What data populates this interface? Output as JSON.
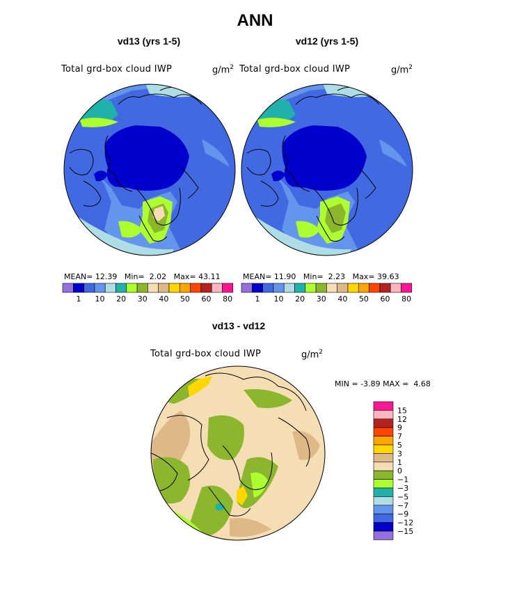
{
  "figure": {
    "title": "ANN",
    "units_base": "g/m",
    "units_exp": "2"
  },
  "chart_data": [
    {
      "type": "heatmap",
      "projection": "polar-stereographic-north",
      "title": "vd13 (yrs 1-5)",
      "field_label": "Total grd-box cloud IWP",
      "units": "g/m^2",
      "stats": {
        "mean_label": "MEAN=",
        "mean": "12.39",
        "min_label": "Min=",
        "min": "2.02",
        "max_label": "Max=",
        "max": "43.11"
      },
      "colorbar": {
        "orientation": "horizontal",
        "tick_labels": [
          "1",
          "10",
          "20",
          "30",
          "40",
          "50",
          "60",
          "80"
        ],
        "colors": [
          "#9370DB",
          "#0000CD",
          "#4169E1",
          "#6495ED",
          "#AEDDE6",
          "#20B2AA",
          "#ADFF2F",
          "#8DB62F",
          "#F5DEB3",
          "#DEB887",
          "#FFD700",
          "#FFA500",
          "#FF4500",
          "#B22222",
          "#FFB6C1",
          "#FF1493"
        ]
      }
    },
    {
      "type": "heatmap",
      "projection": "polar-stereographic-north",
      "title": "vd12 (yrs 1-5)",
      "field_label": "Total grd-box cloud IWP",
      "units": "g/m^2",
      "stats": {
        "mean_label": "MEAN=",
        "mean": "11.90",
        "min_label": "Min=",
        "min": "2.23",
        "max_label": "Max=",
        "max": "39.63"
      },
      "colorbar": {
        "orientation": "horizontal",
        "tick_labels": [
          "1",
          "10",
          "20",
          "30",
          "40",
          "50",
          "60",
          "80"
        ],
        "colors": [
          "#9370DB",
          "#0000CD",
          "#4169E1",
          "#6495ED",
          "#AEDDE6",
          "#20B2AA",
          "#ADFF2F",
          "#8DB62F",
          "#F5DEB3",
          "#DEB887",
          "#FFD700",
          "#FFA500",
          "#FF4500",
          "#B22222",
          "#FFB6C1",
          "#FF1493"
        ]
      }
    },
    {
      "type": "heatmap",
      "projection": "polar-stereographic-north",
      "title": "vd13 - vd12",
      "field_label": "Total grd-box cloud IWP",
      "units": "g/m^2",
      "stats": {
        "min_label": "MIN =",
        "min": "-3.89",
        "max_label": "MAX =",
        "max": "4.68"
      },
      "colorbar": {
        "orientation": "vertical",
        "tick_labels": [
          "15",
          "12",
          "9",
          "7",
          "5",
          "3",
          "1",
          "0",
          "−1",
          "−3",
          "−5",
          "−7",
          "−9",
          "−12",
          "−15"
        ],
        "colors": [
          "#FF1493",
          "#FFB6C1",
          "#B22222",
          "#FF4500",
          "#FFA500",
          "#FFD700",
          "#DEB887",
          "#F5DEB3",
          "#8DB62F",
          "#ADFF2F",
          "#20B2AA",
          "#AEDDE6",
          "#6495ED",
          "#4169E1",
          "#0000CD",
          "#9370DB"
        ]
      }
    }
  ]
}
